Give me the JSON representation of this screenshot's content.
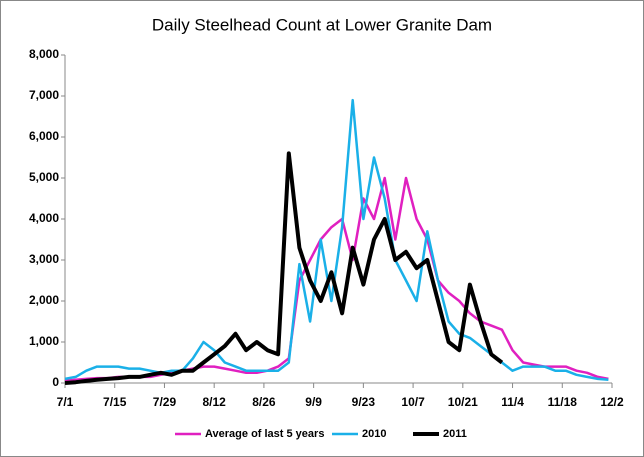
{
  "chart_data": {
    "type": "line",
    "title": "Daily Steelhead Count at Lower Granite Dam",
    "x": [
      0,
      3,
      6,
      9,
      12,
      15,
      18,
      21,
      24,
      27,
      30,
      33,
      36,
      39,
      42,
      45,
      48,
      51,
      54,
      57,
      60,
      63,
      66,
      69,
      72,
      75,
      78,
      81,
      84,
      87,
      90,
      93,
      96,
      99,
      102,
      105,
      108,
      111,
      114,
      117,
      120,
      123,
      126,
      129,
      132,
      135,
      138,
      141,
      144,
      147,
      150,
      153
    ],
    "xlim": [
      0,
      154
    ],
    "xticks": [
      {
        "value": 0,
        "label": "7/1"
      },
      {
        "value": 14,
        "label": "7/15"
      },
      {
        "value": 28,
        "label": "7/29"
      },
      {
        "value": 42,
        "label": "8/12"
      },
      {
        "value": 56,
        "label": "8/26"
      },
      {
        "value": 70,
        "label": "9/9"
      },
      {
        "value": 84,
        "label": "9/23"
      },
      {
        "value": 98,
        "label": "10/7"
      },
      {
        "value": 112,
        "label": "10/21"
      },
      {
        "value": 126,
        "label": "11/4"
      },
      {
        "value": 140,
        "label": "11/18"
      },
      {
        "value": 154,
        "label": "12/2"
      }
    ],
    "ylim": [
      0,
      8000
    ],
    "yticks": [
      0,
      {
        "value": 1000,
        "label": "1,000"
      },
      {
        "value": 2000,
        "label": "2,000"
      },
      {
        "value": 3000,
        "label": "3,000"
      },
      {
        "value": 4000,
        "label": "4,000"
      },
      {
        "value": 5000,
        "label": "5,000"
      },
      {
        "value": 6000,
        "label": "6,000"
      },
      {
        "value": 7000,
        "label": "7,000"
      },
      {
        "value": 8000,
        "label": "8,000"
      }
    ],
    "legend": "bottom",
    "series": [
      {
        "name": "Average of last 5 years",
        "color": "#e020c0",
        "width": 2.5,
        "values": [
          50,
          80,
          100,
          120,
          120,
          150,
          150,
          150,
          150,
          200,
          250,
          300,
          350,
          400,
          400,
          350,
          300,
          250,
          250,
          300,
          400,
          600,
          2500,
          3000,
          3500,
          3800,
          4000,
          3000,
          4500,
          4000,
          5000,
          3500,
          5000,
          4000,
          3500,
          2500,
          2200,
          2000,
          1700,
          1500,
          1400,
          1300,
          800,
          500,
          450,
          400,
          400,
          400,
          300,
          250,
          150,
          100
        ]
      },
      {
        "name": "2010",
        "color": "#1ab0e8",
        "width": 2.5,
        "values": [
          100,
          150,
          300,
          400,
          400,
          400,
          350,
          350,
          300,
          250,
          300,
          300,
          600,
          1000,
          800,
          500,
          400,
          300,
          300,
          300,
          300,
          500,
          2900,
          1500,
          3500,
          2000,
          3800,
          6900,
          4000,
          5500,
          4500,
          3000,
          2500,
          2000,
          3700,
          2500,
          1500,
          1200,
          1100,
          900,
          700,
          500,
          300,
          400,
          400,
          400,
          300,
          300,
          200,
          150,
          100,
          80
        ]
      },
      {
        "name": "2011",
        "color": "#000000",
        "width": 4,
        "values": [
          0,
          20,
          50,
          80,
          100,
          120,
          150,
          150,
          200,
          250,
          200,
          300,
          300,
          500,
          700,
          900,
          1200,
          800,
          1000,
          800,
          700,
          5600,
          3300,
          2500,
          2000,
          2700,
          1700,
          3300,
          2400,
          3500,
          4000,
          3000,
          3200,
          2800,
          3000,
          2000,
          1000,
          800,
          2400,
          1500,
          700,
          500,
          null,
          null,
          null,
          null,
          null,
          null,
          null,
          null,
          null,
          null
        ]
      }
    ]
  }
}
